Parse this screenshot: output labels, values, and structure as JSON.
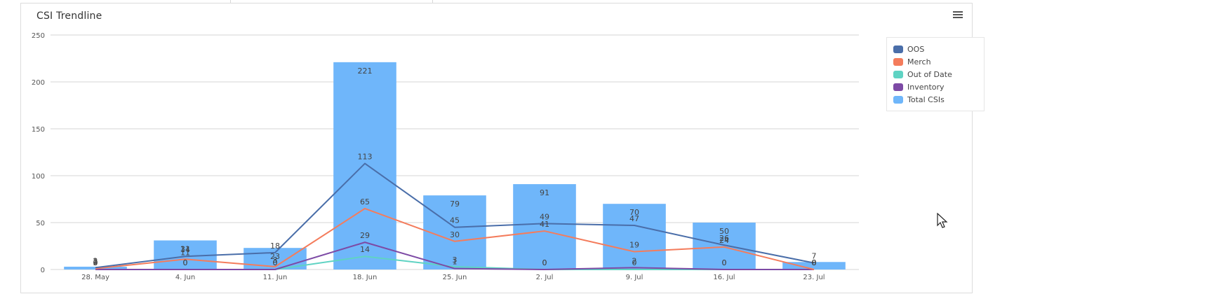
{
  "panel": {
    "title": "CSI Trendline"
  },
  "icons": {
    "menu": "hamburger-menu-icon",
    "cursor": "mouse-pointer-icon"
  },
  "colors": {
    "OOS": "#4a6ea9",
    "Merch": "#f47c5c",
    "Out of Date": "#5fd3c3",
    "Inventory": "#7d4aa5",
    "Total CSIs": "#6fb6fa"
  },
  "chart_data": {
    "type": "bar",
    "title": "CSI Trendline",
    "xlabel": "",
    "ylabel": "",
    "categories": [
      "28. May",
      "4. Jun",
      "11. Jun",
      "18. Jun",
      "25. Jun",
      "2. Jul",
      "9. Jul",
      "16. Jul",
      "23. Jul"
    ],
    "ylim": [
      0,
      250
    ],
    "yticks": [
      0,
      50,
      100,
      150,
      200,
      250
    ],
    "grid": true,
    "legend_position": "top-right",
    "series": [
      {
        "name": "Total CSIs",
        "kind": "bar",
        "values": [
          3,
          31,
          23,
          221,
          79,
          91,
          70,
          50,
          8
        ]
      },
      {
        "name": "OOS",
        "kind": "line",
        "values": [
          2,
          14,
          18,
          113,
          45,
          49,
          47,
          26,
          7
        ]
      },
      {
        "name": "Merch",
        "kind": "line",
        "values": [
          1,
          11,
          3,
          65,
          30,
          41,
          19,
          24,
          0
        ]
      },
      {
        "name": "Out of Date",
        "kind": "line",
        "values": [
          0,
          0,
          0,
          14,
          3,
          0,
          0,
          0,
          0
        ]
      },
      {
        "name": "Inventory",
        "kind": "line",
        "values": [
          0,
          0,
          0,
          29,
          1,
          0,
          2,
          0,
          0
        ]
      }
    ],
    "legend": [
      "OOS",
      "Merch",
      "Out of Date",
      "Inventory",
      "Total CSIs"
    ]
  }
}
